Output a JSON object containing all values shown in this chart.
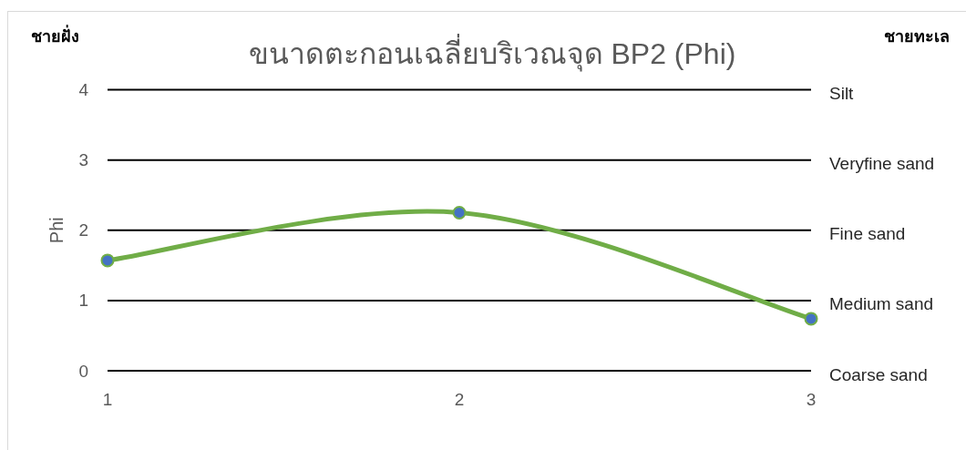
{
  "chart_data": {
    "type": "line",
    "title": "ขนาดตะกอนเฉลี่ยบริเวณจุด BP2 (Phi)",
    "ylabel": "Phi",
    "annotations": [
      "ชายฝั่ง",
      "ชายทะเล",
      "Silt",
      "Veryfine sand",
      "Fine sand",
      "Medium sand",
      "Coarse sand"
    ],
    "x": [
      1,
      2,
      3
    ],
    "xlim": [
      1,
      3
    ],
    "xticks": [
      1,
      2,
      3
    ],
    "ylim": [
      0,
      4
    ],
    "yticks": [
      0,
      1,
      2,
      3,
      4
    ],
    "series": [
      {
        "color": "#70ad47",
        "colors": [
          "#4472c4",
          "#4472c4",
          "#4472c4"
        ],
        "values": [
          1.57,
          2.25,
          0.74
        ]
      }
    ],
    "marker": "circle",
    "grid": "y"
  }
}
